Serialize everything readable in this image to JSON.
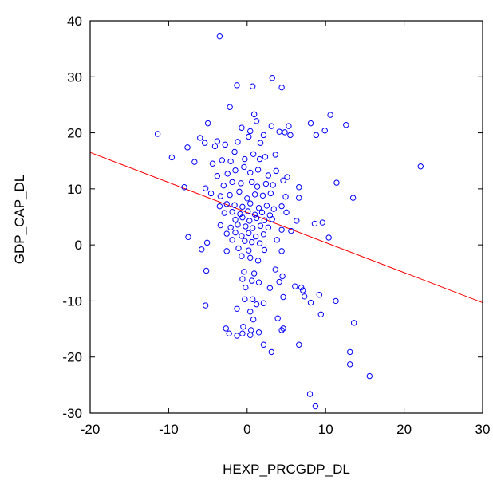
{
  "chart_data": {
    "type": "scatter",
    "title": "",
    "xlabel": "HEXP_PRCGDP_DL",
    "ylabel": "GDP_CAP_DL",
    "xlim": [
      -20,
      30
    ],
    "ylim": [
      -30,
      40
    ],
    "xticks": [
      -20,
      -10,
      0,
      10,
      20,
      30
    ],
    "yticks": [
      -30,
      -20,
      -10,
      0,
      10,
      20,
      30,
      40
    ],
    "xtick_labels": [
      "-20",
      "-10",
      "0",
      "10",
      "20",
      "30"
    ],
    "ytick_labels": [
      "-30",
      "-20",
      "-10",
      "0",
      "10",
      "20",
      "30",
      "40"
    ],
    "grid": false,
    "legend": false,
    "marker_color": "#0000ff",
    "fit_line_color": "#ff0000",
    "fit_line": {
      "x": [
        -20,
        30
      ],
      "y": [
        16.5,
        -10.3
      ]
    },
    "series": [
      {
        "points": [
          [
            -3.5,
            37.2
          ],
          [
            3.2,
            29.8
          ],
          [
            -1.3,
            28.5
          ],
          [
            0.7,
            28.3
          ],
          [
            4.4,
            28.1
          ],
          [
            -2.2,
            24.6
          ],
          [
            0.9,
            23.3
          ],
          [
            10.6,
            23.2
          ],
          [
            1.2,
            22.1
          ],
          [
            -0.7,
            20.9
          ],
          [
            -5.0,
            21.7
          ],
          [
            12.6,
            21.4
          ],
          [
            3.1,
            21.2
          ],
          [
            5.3,
            21.2
          ],
          [
            8.1,
            21.7
          ],
          [
            -11.4,
            19.8
          ],
          [
            -9.6,
            15.6
          ],
          [
            -7.6,
            17.4
          ],
          [
            -5.4,
            18.2
          ],
          [
            -3.8,
            18.5
          ],
          [
            -6.0,
            19.1
          ],
          [
            -4.1,
            17.6
          ],
          [
            -2.8,
            17.9
          ],
          [
            -1.2,
            18.4
          ],
          [
            0.2,
            19.3
          ],
          [
            1.7,
            18.2
          ],
          [
            2.1,
            19.6
          ],
          [
            0.4,
            20.3
          ],
          [
            4.1,
            20.2
          ],
          [
            4.8,
            20.1
          ],
          [
            5.5,
            19.6
          ],
          [
            8.8,
            19.6
          ],
          [
            9.9,
            20.4
          ],
          [
            -6.7,
            14.8
          ],
          [
            -4.4,
            14.5
          ],
          [
            -3.2,
            15.1
          ],
          [
            -2.1,
            14.9
          ],
          [
            -1.6,
            16.6
          ],
          [
            -0.3,
            15.3
          ],
          [
            0.8,
            16.2
          ],
          [
            1.6,
            15.3
          ],
          [
            2.3,
            15.7
          ],
          [
            3.6,
            16.1
          ],
          [
            -3.8,
            12.3
          ],
          [
            -2.5,
            12.7
          ],
          [
            -1.5,
            13.3
          ],
          [
            -0.4,
            13.9
          ],
          [
            0.4,
            12.9
          ],
          [
            1.4,
            13.4
          ],
          [
            2.7,
            12.4
          ],
          [
            3.7,
            13.2
          ],
          [
            5.1,
            12.1
          ],
          [
            -8.0,
            10.3
          ],
          [
            -5.3,
            10.1
          ],
          [
            -3.0,
            10.6
          ],
          [
            -1.9,
            11.2
          ],
          [
            -0.8,
            11.0
          ],
          [
            0.6,
            11.2
          ],
          [
            1.3,
            10.4
          ],
          [
            2.4,
            10.9
          ],
          [
            3.3,
            10.7
          ],
          [
            4.6,
            11.5
          ],
          [
            6.6,
            10.3
          ],
          [
            11.4,
            11.1
          ],
          [
            13.5,
            8.4
          ],
          [
            22.1,
            14.0
          ],
          [
            -4.6,
            9.2
          ],
          [
            -3.4,
            8.7
          ],
          [
            -2.2,
            8.9
          ],
          [
            -1.0,
            9.5
          ],
          [
            0.0,
            8.3
          ],
          [
            1.0,
            9.0
          ],
          [
            2.0,
            8.8
          ],
          [
            3.0,
            9.2
          ],
          [
            4.9,
            8.6
          ],
          [
            6.6,
            8.4
          ],
          [
            -3.5,
            6.9
          ],
          [
            -2.6,
            7.3
          ],
          [
            -1.6,
            7.1
          ],
          [
            -0.6,
            6.8
          ],
          [
            0.4,
            7.4
          ],
          [
            1.5,
            6.6
          ],
          [
            2.5,
            7.0
          ],
          [
            3.4,
            6.4
          ],
          [
            4.4,
            6.9
          ],
          [
            -2.9,
            5.7
          ],
          [
            -1.9,
            5.9
          ],
          [
            -0.9,
            5.5
          ],
          [
            0.1,
            6.0
          ],
          [
            1.0,
            5.4
          ],
          [
            1.9,
            5.8
          ],
          [
            2.9,
            5.3
          ],
          [
            5.0,
            5.8
          ],
          [
            -1.5,
            4.5
          ],
          [
            -0.6,
            4.9
          ],
          [
            0.3,
            4.3
          ],
          [
            1.2,
            4.8
          ],
          [
            2.2,
            4.4
          ],
          [
            3.2,
            4.6
          ],
          [
            6.3,
            4.3
          ],
          [
            -3.4,
            3.5
          ],
          [
            -2.1,
            3.1
          ],
          [
            -1.2,
            3.6
          ],
          [
            -0.2,
            3.3
          ],
          [
            0.7,
            3.0
          ],
          [
            1.7,
            3.4
          ],
          [
            2.7,
            3.1
          ],
          [
            4.4,
            2.7
          ],
          [
            5.6,
            2.5
          ],
          [
            8.6,
            3.8
          ],
          [
            9.6,
            4.0
          ],
          [
            -2.6,
            2.0
          ],
          [
            -1.5,
            2.2
          ],
          [
            -0.7,
            1.6
          ],
          [
            0.2,
            2.1
          ],
          [
            1.1,
            1.5
          ],
          [
            2.1,
            1.9
          ],
          [
            -7.5,
            1.4
          ],
          [
            -5.1,
            0.4
          ],
          [
            -1.9,
            0.9
          ],
          [
            -0.3,
            0.7
          ],
          [
            0.6,
            0.5
          ],
          [
            1.6,
            0.3
          ],
          [
            3.8,
            0.9
          ],
          [
            10.4,
            1.3
          ],
          [
            -5.8,
            -0.8
          ],
          [
            -2.6,
            -1.1
          ],
          [
            -1.1,
            -0.6
          ],
          [
            0.2,
            -1.0
          ],
          [
            2.2,
            -0.9
          ],
          [
            4.4,
            -1.1
          ],
          [
            -0.7,
            -2.0
          ],
          [
            0.4,
            -2.3
          ],
          [
            1.4,
            -2.8
          ],
          [
            -5.2,
            -4.6
          ],
          [
            -0.4,
            -4.8
          ],
          [
            0.9,
            -5.1
          ],
          [
            3.6,
            -4.4
          ],
          [
            4.5,
            -5.6
          ],
          [
            -0.6,
            -6.1
          ],
          [
            0.6,
            -6.4
          ],
          [
            1.5,
            -6.7
          ],
          [
            4.1,
            -6.6
          ],
          [
            6.1,
            -7.4
          ],
          [
            6.9,
            -7.6
          ],
          [
            -0.2,
            -7.6
          ],
          [
            2.9,
            -7.7
          ],
          [
            7.1,
            -8.1
          ],
          [
            9.2,
            -8.9
          ],
          [
            -5.3,
            -10.8
          ],
          [
            -0.3,
            -9.7
          ],
          [
            0.7,
            -9.7
          ],
          [
            1.2,
            -10.6
          ],
          [
            2.1,
            -10.4
          ],
          [
            4.6,
            -9.3
          ],
          [
            7.3,
            -9.2
          ],
          [
            8.1,
            -10.3
          ],
          [
            11.3,
            -10.0
          ],
          [
            -1.3,
            -11.4
          ],
          [
            0.4,
            -11.9
          ],
          [
            9.4,
            -12.4
          ],
          [
            0.8,
            -13.3
          ],
          [
            3.9,
            -13.1
          ],
          [
            13.6,
            -13.9
          ],
          [
            -2.7,
            -14.9
          ],
          [
            -0.5,
            -14.6
          ],
          [
            0.5,
            -15.2
          ],
          [
            1.5,
            -15.6
          ],
          [
            4.4,
            -15.2
          ],
          [
            4.6,
            -14.9
          ],
          [
            -2.3,
            -15.8
          ],
          [
            -1.3,
            -16.2
          ],
          [
            -0.6,
            -15.8
          ],
          [
            0.4,
            -16.1
          ],
          [
            2.1,
            -17.8
          ],
          [
            3.1,
            -19.1
          ],
          [
            6.6,
            -17.8
          ],
          [
            13.1,
            -19.1
          ],
          [
            13.1,
            -21.3
          ],
          [
            15.6,
            -23.4
          ],
          [
            8.0,
            -26.6
          ],
          [
            8.7,
            -28.8
          ]
        ]
      }
    ]
  }
}
